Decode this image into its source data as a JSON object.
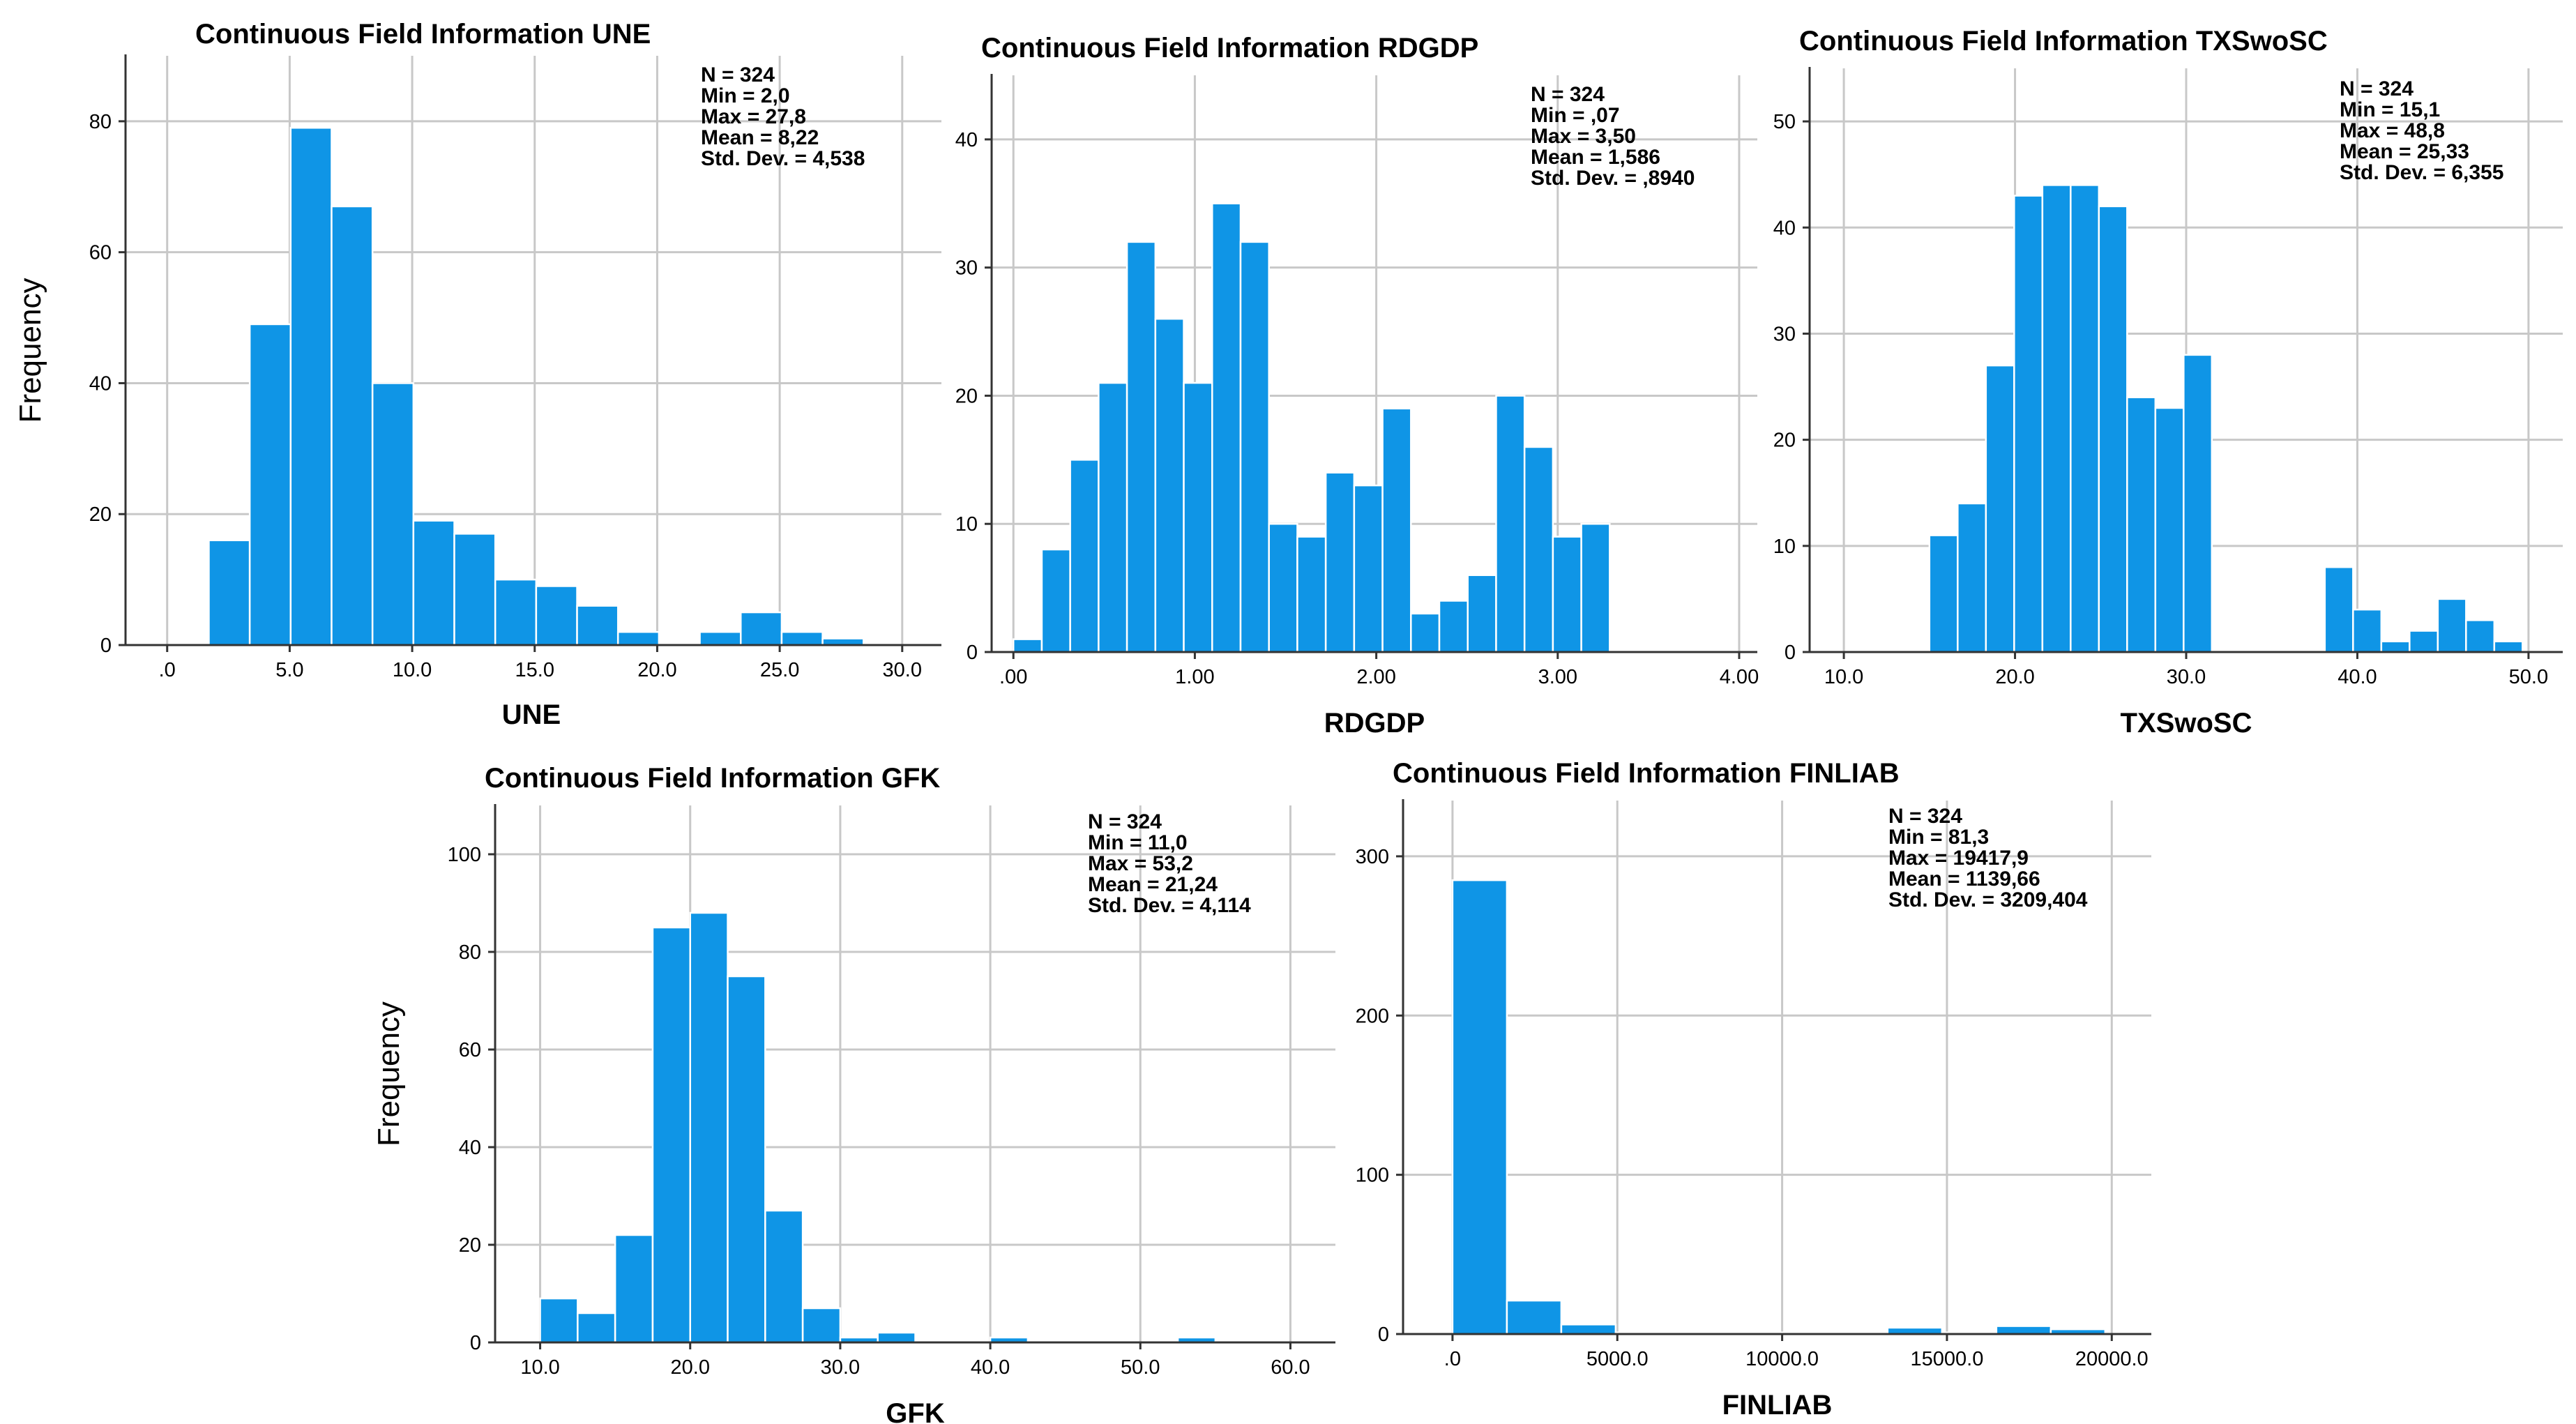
{
  "figure": {
    "ylabel_common": "Frequency"
  },
  "colors": {
    "bar": "#0f95e6",
    "bar_edge": "#ffffff",
    "grid": "#c8c8c8",
    "axis": "#333333",
    "text": "#000000"
  },
  "chart_data": [
    {
      "type": "bar",
      "title": "Continuous Field Information UNE",
      "xlabel": "UNE",
      "ylabel": "Frequency",
      "xlim": [
        -1.7,
        31.6
      ],
      "ylim": [
        0,
        90
      ],
      "xticks": [
        0,
        5,
        10,
        15,
        20,
        25,
        30
      ],
      "xtick_labels": [
        ".0",
        "5.0",
        "10.0",
        "15.0",
        "20.0",
        "25.0",
        "30.0"
      ],
      "yticks": [
        0,
        20,
        40,
        60,
        80
      ],
      "bin_start": 1.7,
      "bin_width": 1.67,
      "values": [
        16,
        49,
        79,
        67,
        40,
        19,
        17,
        10,
        9,
        6,
        2,
        0,
        2,
        5,
        2,
        1
      ],
      "stats": [
        "N = 324",
        "Min = 2,0",
        "Max = 27,8",
        "Mean = 8,22",
        "Std. Dev. = 4,538"
      ]
    },
    {
      "type": "bar",
      "title": "Continuous Field Information RDGDP",
      "xlabel": "RDGDP",
      "ylabel": "",
      "xlim": [
        -0.12,
        4.1
      ],
      "ylim": [
        0,
        45
      ],
      "xticks": [
        0,
        1,
        2,
        3,
        4
      ],
      "xtick_labels": [
        ".00",
        "1.00",
        "2.00",
        "3.00",
        "4.00"
      ],
      "yticks": [
        0,
        10,
        20,
        30,
        40
      ],
      "bin_start": 0.0,
      "bin_width": 0.1565,
      "values": [
        1,
        8,
        15,
        21,
        32,
        26,
        21,
        35,
        32,
        10,
        9,
        14,
        13,
        19,
        3,
        4,
        6,
        20,
        16,
        9,
        10
      ],
      "stats": [
        "N = 324",
        "Min = ,07",
        "Max = 3,50",
        "Mean = 1,586",
        "Std. Dev. = ,8940"
      ]
    },
    {
      "type": "bar",
      "title": "Continuous Field Information TXSwoSC",
      "xlabel": "TXSwoSC",
      "ylabel": "",
      "xlim": [
        8.0,
        52.0
      ],
      "ylim": [
        0,
        55
      ],
      "xticks": [
        10,
        20,
        30,
        40,
        50
      ],
      "xtick_labels": [
        "10.0",
        "20.0",
        "30.0",
        "40.0",
        "50.0"
      ],
      "yticks": [
        0,
        10,
        20,
        30,
        40,
        50
      ],
      "bin_start": 15.0,
      "bin_width": 1.65,
      "values": [
        11,
        14,
        27,
        43,
        44,
        44,
        42,
        24,
        23,
        28,
        0,
        0,
        0,
        0,
        8,
        4,
        1,
        2,
        5,
        3,
        1
      ],
      "stats": [
        "N = 324",
        "Min = 15,1",
        "Max = 48,8",
        "Mean = 25,33",
        "Std. Dev. = 6,355"
      ]
    },
    {
      "type": "bar",
      "title": "Continuous Field Information GFK",
      "xlabel": "GFK",
      "ylabel": "Frequency",
      "xlim": [
        7.0,
        63.0
      ],
      "ylim": [
        0,
        110
      ],
      "xticks": [
        10,
        20,
        30,
        40,
        50,
        60
      ],
      "xtick_labels": [
        "10.0",
        "20.0",
        "30.0",
        "40.0",
        "50.0",
        "60.0"
      ],
      "yticks": [
        0,
        20,
        40,
        60,
        80,
        100
      ],
      "bin_start": 10.0,
      "bin_width": 2.5,
      "values": [
        9,
        6,
        22,
        85,
        88,
        75,
        27,
        7,
        1,
        2,
        0,
        0,
        1,
        0,
        0,
        0,
        0,
        1
      ],
      "stats": [
        "N = 324",
        "Min = 11,0",
        "Max = 53,2",
        "Mean = 21,24",
        "Std. Dev. = 4,114"
      ]
    },
    {
      "type": "bar",
      "title": "Continuous Field Information FINLIAB",
      "xlabel": "FINLIAB",
      "ylabel": "",
      "xlim": [
        -1500,
        21200
      ],
      "ylim": [
        0,
        335
      ],
      "xticks": [
        0,
        5000,
        10000,
        15000,
        20000
      ],
      "xtick_labels": [
        ".0",
        "5000.0",
        "10000.0",
        "15000.0",
        "20000.0"
      ],
      "yticks": [
        0,
        100,
        200,
        300
      ],
      "bin_start": 0,
      "bin_width": 1650,
      "values": [
        285,
        21,
        6,
        1,
        1,
        1,
        1,
        1,
        4,
        1,
        5,
        3
      ],
      "stats": [
        "N = 324",
        "Min = 81,3",
        "Max = 19417,9",
        "Mean = 1139,66",
        "Std. Dev. = 3209,404"
      ]
    }
  ]
}
